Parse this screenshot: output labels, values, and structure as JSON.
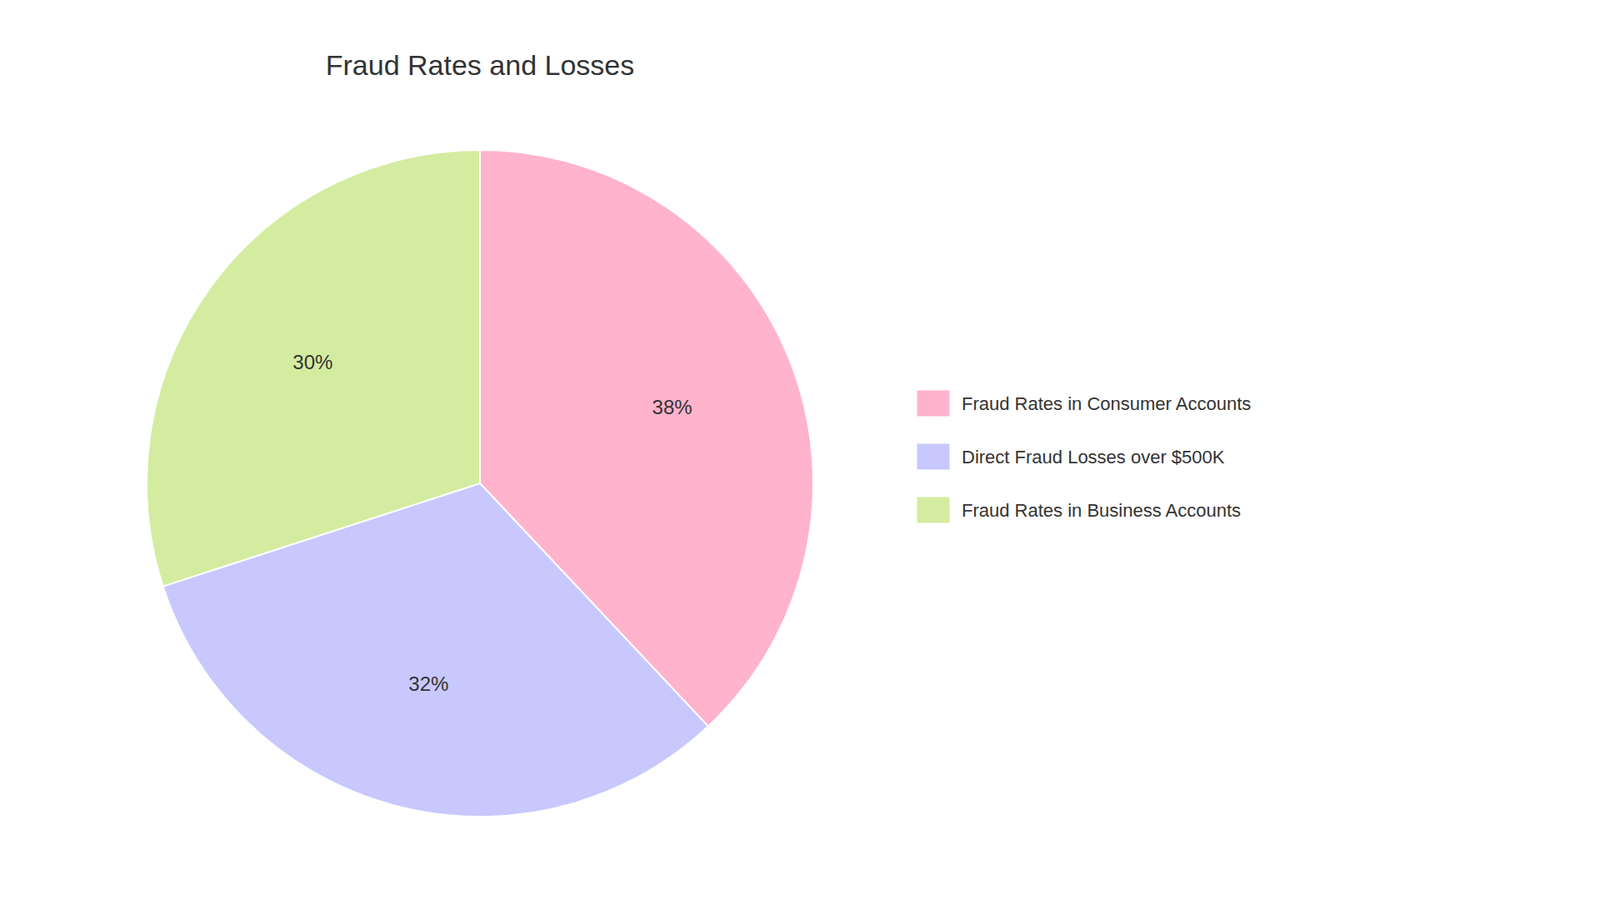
{
  "chart_data": {
    "type": "pie",
    "title": "Fraud Rates and Losses",
    "categories": [
      "Fraud Rates in Consumer Accounts",
      "Direct Fraud Losses over $500K",
      "Fraud Rates in Business Accounts"
    ],
    "values": [
      38,
      32,
      30
    ],
    "value_labels": [
      "38%",
      "32%",
      "30%"
    ],
    "colors": [
      "#FFB3CC",
      "#C8C8FF",
      "#D4ECA0"
    ],
    "data_labels": true,
    "legend": "right"
  }
}
